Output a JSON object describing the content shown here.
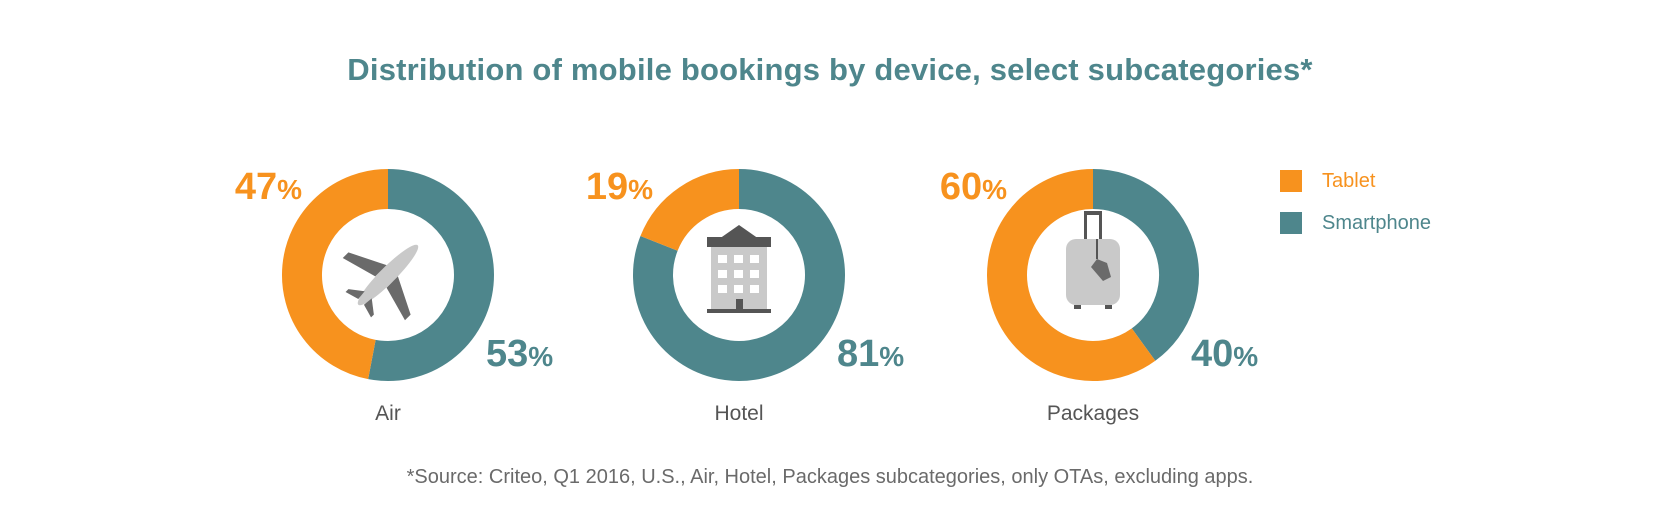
{
  "chart_data": {
    "type": "pie",
    "title": "Distribution of mobile bookings by device, select subcategories*",
    "series": [
      {
        "name": "Tablet",
        "color": "#f7921e"
      },
      {
        "name": "Smartphone",
        "color": "#4e868c"
      }
    ],
    "charts": [
      {
        "category": "Air",
        "icon": "airplane-icon",
        "tablet": 47,
        "smartphone": 53,
        "tablet_label": "47%",
        "smartphone_label": "53%"
      },
      {
        "category": "Hotel",
        "icon": "hotel-building-icon",
        "tablet": 19,
        "smartphone": 81,
        "tablet_label": "19%",
        "smartphone_label": "81%"
      },
      {
        "category": "Packages",
        "icon": "luggage-icon",
        "tablet": 60,
        "smartphone": 40,
        "tablet_label": "60%",
        "smartphone_label": "40%"
      }
    ],
    "legend_position": "right"
  },
  "footnote": "*Source: Criteo, Q1 2016, U.S., Air, Hotel, Packages subcategories, only OTAs, excluding apps."
}
